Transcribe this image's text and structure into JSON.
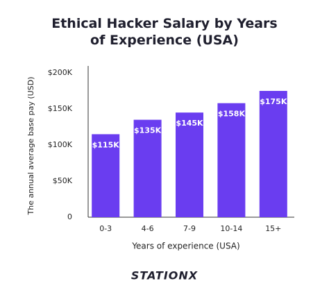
{
  "chart_data": {
    "type": "bar",
    "title": "Ethical Hacker Salary by Years of Experience (USA)",
    "y_label": "The annual average base pay (USD)",
    "x_label": "Years of experience (USA)",
    "categories": [
      "0-3",
      "4-6",
      "7-9",
      "10-14",
      "15+"
    ],
    "values": [
      115000,
      135000,
      145000,
      158000,
      175000
    ],
    "value_labels": [
      "$115K",
      "$135K",
      "$145K",
      "$158K",
      "$175K"
    ],
    "color": "#6a3df0",
    "ylim": [
      0,
      200000
    ],
    "yticks": [
      0,
      {
        "value": 50000,
        "label": "$50K"
      },
      {
        "value": 100000,
        "label": "$100K"
      },
      {
        "value": 150000,
        "label": "$150K"
      },
      {
        "value": 200000,
        "label": "$200K"
      }
    ],
    "grid": false,
    "logo": "STATIONX"
  }
}
